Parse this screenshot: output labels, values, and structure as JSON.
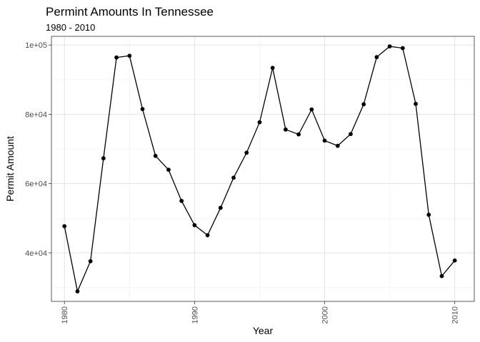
{
  "chart_data": {
    "type": "line",
    "title": "Permint Amounts In Tennessee",
    "subtitle": "1980 - 2010",
    "xlabel": "Year",
    "ylabel": "Permit Amount",
    "xlim": [
      1979,
      2011.5
    ],
    "ylim": [
      26000,
      102500
    ],
    "x_ticks": [
      1980,
      1990,
      2000,
      2010
    ],
    "x_tick_labels": [
      "1980",
      "1990",
      "2000",
      "2010"
    ],
    "y_ticks": [
      40000,
      60000,
      80000,
      100000
    ],
    "y_tick_labels": [
      "4e+04",
      "6e+04",
      "8e+04",
      "1e+05"
    ],
    "x_minor_ticks": [
      1985,
      1995,
      2005
    ],
    "y_minor_ticks": [
      30000,
      50000,
      70000,
      90000
    ],
    "grid": true,
    "line_color": "#000000",
    "point_color": "#000000",
    "series": [
      {
        "x": [
          1980,
          1981,
          1982,
          1983,
          1984,
          1985,
          1986,
          1987,
          1988,
          1989,
          1990,
          1991,
          1992,
          1993,
          1994,
          1995,
          1996,
          1997,
          1998,
          1999,
          2000,
          2001,
          2002,
          2003,
          2004,
          2005,
          2006,
          2007,
          2008,
          2009,
          2010
        ],
        "y": [
          47700,
          28900,
          37600,
          67300,
          96400,
          96900,
          81500,
          68000,
          64000,
          55000,
          48000,
          45100,
          53000,
          61700,
          68900,
          77700,
          93400,
          75600,
          74200,
          81400,
          72400,
          70900,
          74300,
          82900,
          96500,
          99600,
          99100,
          83000,
          51000,
          33300,
          37800
        ]
      }
    ]
  }
}
